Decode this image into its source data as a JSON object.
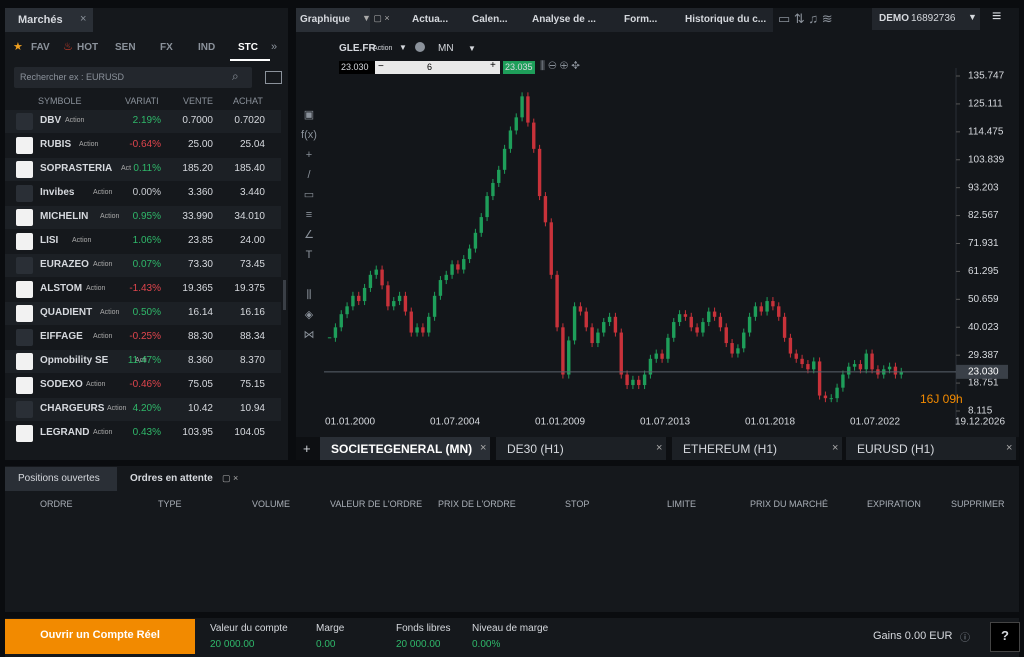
{
  "markets_panel": {
    "title": "Marchés",
    "tabs": [
      "FAV",
      "HOT",
      "SEN",
      "FX",
      "IND",
      "STC"
    ],
    "search_placeholder": "Rechercher ex : EURUSD",
    "columns": [
      "SYMBOLE",
      "VARIATI",
      "VENTE",
      "ACHAT"
    ],
    "rows": [
      {
        "symbol": "DBV",
        "type": "Action",
        "change": "2.19%",
        "sell": "0.7000",
        "buy": "0.7020"
      },
      {
        "symbol": "RUBIS",
        "type": "Action",
        "change": "-0.64%",
        "sell": "25.00",
        "buy": "25.04"
      },
      {
        "symbol": "SOPRASTERIA",
        "type": "Act",
        "change": "0.11%",
        "sell": "185.20",
        "buy": "185.40"
      },
      {
        "symbol": "Invibes",
        "type": "Action",
        "change": "0.00%",
        "sell": "3.360",
        "buy": "3.440"
      },
      {
        "symbol": "MICHELIN",
        "type": "Action",
        "change": "0.95%",
        "sell": "33.990",
        "buy": "34.010"
      },
      {
        "symbol": "LISI",
        "type": "Action",
        "change": "1.06%",
        "sell": "23.85",
        "buy": "24.00"
      },
      {
        "symbol": "EURAZEO",
        "type": "Action",
        "change": "0.07%",
        "sell": "73.30",
        "buy": "73.45"
      },
      {
        "symbol": "ALSTOM",
        "type": "Action",
        "change": "-1.43%",
        "sell": "19.365",
        "buy": "19.375"
      },
      {
        "symbol": "QUADIENT",
        "type": "Action",
        "change": "0.50%",
        "sell": "16.14",
        "buy": "16.16"
      },
      {
        "symbol": "EIFFAGE",
        "type": "Action",
        "change": "-0.25%",
        "sell": "88.30",
        "buy": "88.34"
      },
      {
        "symbol": "Opmobility SE",
        "type": "Acti",
        "change": "11.47%",
        "sell": "8.360",
        "buy": "8.370"
      },
      {
        "symbol": "SODEXO",
        "type": "Action",
        "change": "-0.46%",
        "sell": "75.05",
        "buy": "75.15"
      },
      {
        "symbol": "CHARGEURS",
        "type": "Action",
        "change": "4.20%",
        "sell": "10.42",
        "buy": "10.94"
      },
      {
        "symbol": "LEGRAND",
        "type": "Action",
        "change": "0.43%",
        "sell": "103.95",
        "buy": "104.05"
      }
    ]
  },
  "top_tabs": [
    "Graphique",
    "Actua...",
    "Calen...",
    "Analyse de ...",
    "Form...",
    "Historique du c..."
  ],
  "account": {
    "mode": "DEMO",
    "number": "16892736"
  },
  "chart_toolbar": {
    "symbol": "GLE.FR",
    "type": "Action",
    "timeframe": "MN",
    "sell": "23.030",
    "quantity": "6",
    "buy": "23.035"
  },
  "price_chart": {
    "type": "candlestick",
    "closes": [
      36,
      40,
      45,
      48,
      52,
      50,
      55,
      60,
      62,
      56,
      48,
      50,
      52,
      46,
      38,
      40,
      38,
      44,
      52,
      58,
      60,
      64,
      62,
      66,
      70,
      76,
      82,
      90,
      95,
      100,
      108,
      115,
      120,
      128,
      118,
      108,
      90,
      80,
      60,
      40,
      22,
      35,
      48,
      46,
      40,
      34,
      38,
      42,
      44,
      38,
      22,
      18,
      20,
      18,
      22,
      28,
      30,
      28,
      36,
      42,
      45,
      44,
      40,
      38,
      42,
      46,
      44,
      40,
      34,
      30,
      32,
      38,
      44,
      48,
      46,
      50,
      48,
      44,
      36,
      30,
      28,
      26,
      24,
      27,
      14,
      13,
      13,
      17,
      22,
      25,
      26,
      24,
      30,
      24,
      22,
      24,
      25,
      22,
      23.03
    ],
    "ylim": [
      2.78,
      138.8
    ],
    "yticks": [
      135.747,
      125.111,
      114.475,
      103.839,
      93.203,
      82.567,
      71.931,
      61.295,
      50.659,
      40.023,
      29.387,
      18.751,
      8.115
    ],
    "xticks": [
      "01.01.2000",
      "01.07.2004",
      "01.01.2009",
      "01.07.2013",
      "01.01.2018",
      "01.07.2022",
      "19.12.2026"
    ],
    "current_price": {
      "value": 23.03,
      "label": "23.030"
    },
    "countdown": "16J 09h",
    "up_color": "#1e9e5a",
    "down_color": "#c8323a"
  },
  "chart_tabs": [
    "SOCIETEGENERAL (MN)",
    "DE30 (H1)",
    "ETHEREUM (H1)",
    "EURUSD (H1)"
  ],
  "orders_panel": {
    "tabs": [
      "Positions ouvertes",
      "Ordres en attente"
    ],
    "columns": [
      "ORDRE",
      "TYPE",
      "VOLUME",
      "VALEUR DE L'ORDRE",
      "PRIX DE L'ORDRE",
      "STOP",
      "LIMITE",
      "PRIX DU MARCHÉ",
      "EXPIRATION",
      "SUPPRIMER"
    ]
  },
  "footer": {
    "cta": "Ouvrir un Compte Réel",
    "stats": [
      {
        "label": "Valeur du compte",
        "value": "20 000.00"
      },
      {
        "label": "Marge",
        "value": "0.00"
      },
      {
        "label": "Fonds libres",
        "value": "20 000.00"
      },
      {
        "label": "Niveau de marge",
        "value": "0.00%"
      }
    ],
    "gains": "Gains 0.00 EUR",
    "help": "?"
  }
}
